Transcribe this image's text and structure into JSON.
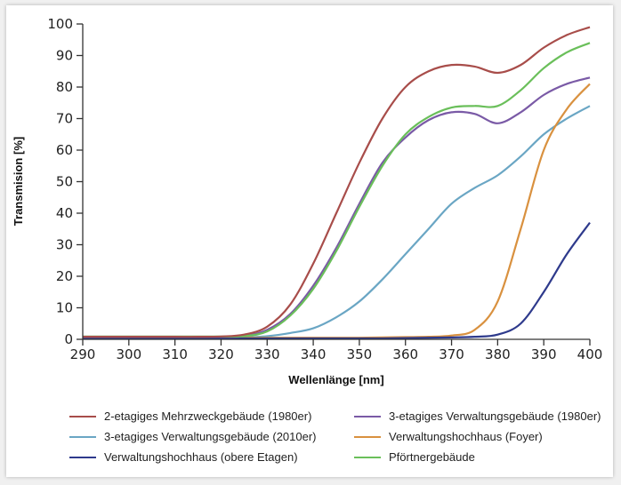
{
  "chart_data": {
    "type": "line",
    "xlabel": "Wellenlänge [nm]",
    "ylabel": "Transmision [%]",
    "xlim": [
      290,
      400
    ],
    "ylim": [
      0,
      100
    ],
    "xticks": [
      290,
      300,
      310,
      320,
      330,
      340,
      350,
      360,
      370,
      380,
      390,
      400
    ],
    "yticks": [
      0,
      10,
      20,
      30,
      40,
      50,
      60,
      70,
      80,
      90,
      100
    ],
    "grid": false,
    "legend_placement": "bottom",
    "x": [
      290,
      295,
      300,
      305,
      310,
      315,
      320,
      325,
      330,
      335,
      340,
      345,
      350,
      355,
      360,
      365,
      370,
      375,
      380,
      385,
      390,
      395,
      400
    ],
    "series": [
      {
        "name": "2-etagiges Mehrzweckgebäude (1980er)",
        "color": "#a84d4a",
        "values": [
          0.8,
          0.8,
          0.8,
          0.8,
          0.8,
          0.8,
          0.9,
          1.5,
          4,
          11,
          24,
          40,
          56,
          70,
          80,
          85,
          87,
          86.5,
          84.5,
          87,
          92.5,
          96.5,
          99
        ]
      },
      {
        "name": "3-etagiges Verwaltungsgebäude (1980er)",
        "color": "#7a5aa6",
        "values": [
          0.8,
          0.8,
          0.8,
          0.8,
          0.8,
          0.8,
          0.8,
          1,
          3,
          8,
          17,
          29,
          43,
          56,
          64,
          69.5,
          72,
          71.5,
          68.5,
          72,
          77.5,
          81,
          83
        ]
      },
      {
        "name": "3-etagiges Verwaltungsgebäude (2010er)",
        "color": "#6aa6c4",
        "values": [
          0.5,
          0.5,
          0.5,
          0.5,
          0.5,
          0.5,
          0.5,
          0.6,
          1,
          2,
          3.5,
          7,
          12,
          19,
          27,
          35,
          43,
          48,
          52,
          58,
          65,
          70,
          74
        ]
      },
      {
        "name": "Verwaltungshochhaus (Foyer)",
        "color": "#d9913f",
        "values": [
          0.5,
          0.5,
          0.5,
          0.5,
          0.5,
          0.5,
          0.5,
          0.5,
          0.5,
          0.5,
          0.5,
          0.5,
          0.5,
          0.6,
          0.7,
          0.8,
          1.2,
          3,
          12,
          35,
          60,
          73,
          81
        ]
      },
      {
        "name": "Verwaltungshochhaus (obere Etagen)",
        "color": "#2e3a8c",
        "values": [
          0.3,
          0.3,
          0.3,
          0.3,
          0.3,
          0.3,
          0.3,
          0.3,
          0.3,
          0.3,
          0.3,
          0.3,
          0.3,
          0.3,
          0.4,
          0.5,
          0.6,
          0.8,
          1.5,
          5,
          15,
          27,
          37
        ]
      },
      {
        "name": "Pförtnergebäude",
        "color": "#6abf5a",
        "values": [
          0.9,
          0.9,
          0.9,
          0.9,
          0.9,
          0.9,
          0.9,
          1,
          2.5,
          7.5,
          16,
          28,
          42,
          55,
          65,
          70.5,
          73.5,
          74,
          74,
          79,
          86,
          91,
          94
        ]
      }
    ]
  }
}
